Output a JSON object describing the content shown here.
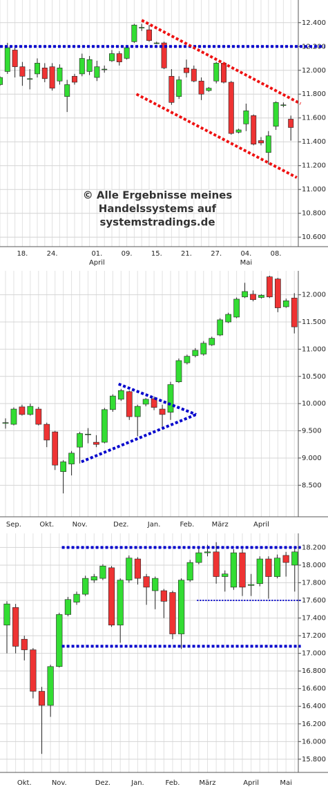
{
  "chart_data": [
    {
      "type": "candlestick",
      "categories": [
        null,
        null,
        null,
        "18.",
        null,
        null,
        null,
        "24.",
        null,
        null,
        null,
        null,
        null,
        "01.",
        null,
        null,
        null,
        "09.",
        null,
        null,
        null,
        "15.",
        null,
        null,
        null,
        "21.",
        null,
        null,
        null,
        "27.",
        null,
        null,
        null,
        "04.",
        null,
        null,
        null,
        "08.",
        null,
        null
      ],
      "months": [
        null,
        null,
        null,
        null,
        null,
        null,
        null,
        null,
        null,
        null,
        null,
        null,
        null,
        "April",
        null,
        null,
        null,
        null,
        null,
        null,
        null,
        null,
        null,
        null,
        null,
        null,
        null,
        null,
        null,
        null,
        null,
        null,
        null,
        "Mai",
        null,
        null,
        null,
        null,
        null,
        null
      ],
      "open": [
        11880,
        11990,
        12170,
        12030,
        11930,
        11970,
        12020,
        12030,
        11910,
        11780,
        11950,
        11970,
        11990,
        11940,
        12010,
        12080,
        12140,
        12100,
        12240,
        12360,
        12340,
        12230,
        12230,
        11950,
        11780,
        12020,
        12010,
        11910,
        11830,
        11910,
        12060,
        11900,
        11480,
        11550,
        11620,
        11410,
        11310,
        11530,
        11710,
        11590
      ],
      "high": [
        11950,
        12230,
        12200,
        12070,
        12010,
        12100,
        12060,
        12060,
        12050,
        11920,
        11970,
        12140,
        12120,
        12080,
        12040,
        12170,
        12160,
        12200,
        12390,
        12390,
        12380,
        12240,
        12240,
        12010,
        11950,
        12090,
        12040,
        11940,
        11860,
        12070,
        12070,
        11910,
        11510,
        11720,
        11630,
        11440,
        11490,
        11740,
        11730,
        11620
      ],
      "low": [
        11870,
        11970,
        11940,
        11870,
        11840,
        11940,
        11900,
        11830,
        11880,
        11650,
        11880,
        11950,
        11960,
        11910,
        11980,
        12070,
        12040,
        12090,
        12230,
        12330,
        12240,
        12220,
        12010,
        11710,
        11760,
        11940,
        11900,
        11750,
        11820,
        11890,
        11890,
        11460,
        11470,
        11490,
        11370,
        11370,
        11210,
        11500,
        11690,
        11410
      ],
      "close": [
        11940,
        12190,
        12030,
        11950,
        11930,
        12060,
        11930,
        11850,
        12020,
        11880,
        11900,
        12100,
        12090,
        12030,
        12010,
        12140,
        12070,
        12190,
        12380,
        12360,
        12250,
        12230,
        12020,
        11730,
        11920,
        11980,
        11910,
        11800,
        11850,
        12060,
        11900,
        11470,
        11500,
        11660,
        11380,
        11390,
        11450,
        11730,
        11710,
        11520
      ],
      "up_color": "#33dd33",
      "down_color": "#ee3333",
      "ylim": [
        10520,
        12590
      ],
      "yticks": [
        {
          "value": 10600,
          "label": "10.600"
        },
        {
          "value": 10800,
          "label": "10.800"
        },
        {
          "value": 11000,
          "label": "11.000"
        },
        {
          "value": 11200,
          "label": "11.200"
        },
        {
          "value": 11400,
          "label": "11.400"
        },
        {
          "value": 11600,
          "label": "11.600"
        },
        {
          "value": 11800,
          "label": "11.800"
        },
        {
          "value": 12000,
          "label": "12.000"
        },
        {
          "value": 12200,
          "label": "12.200"
        },
        {
          "value": 12400,
          "label": "12.400"
        }
      ],
      "grid": true,
      "lines": [
        {
          "color": "#0000cc",
          "x": [
            0,
            43.5
          ],
          "y": [
            12200,
            12200
          ]
        },
        {
          "color": "#ee1111",
          "x": [
            19,
            40.3
          ],
          "y": [
            12420,
            11720
          ]
        },
        {
          "color": "#ee1111",
          "x": [
            18.3,
            39.8
          ],
          "y": [
            11800,
            11100
          ]
        }
      ],
      "annotations": [
        "© Alle Ergebnisse meines",
        "Handelssystems auf",
        "systemstradings.de"
      ]
    },
    {
      "type": "candlestick",
      "categories": [
        null,
        "Sep.",
        null,
        null,
        null,
        "Okt.",
        null,
        null,
        null,
        "Nov.",
        null,
        null,
        null,
        null,
        "Dez.",
        null,
        null,
        null,
        "Jan.",
        null,
        null,
        null,
        "Feb.",
        null,
        null,
        null,
        "März",
        null,
        null,
        null,
        null,
        "April",
        null,
        null,
        null,
        null
      ],
      "open": [
        9650,
        9620,
        9940,
        9800,
        9900,
        9620,
        9480,
        8750,
        8890,
        9200,
        9440,
        9290,
        9290,
        9890,
        10080,
        10220,
        9760,
        9990,
        10090,
        9900,
        9840,
        10400,
        10750,
        10880,
        10910,
        11080,
        11260,
        11500,
        11590,
        11960,
        12010,
        11950,
        12330,
        12290,
        11780,
        11940
      ],
      "high": [
        9730,
        9930,
        9980,
        10000,
        9940,
        9650,
        9500,
        8960,
        9130,
        9480,
        9550,
        9420,
        9920,
        10170,
        10270,
        10240,
        9980,
        10100,
        10130,
        9980,
        10400,
        10830,
        10900,
        11020,
        11150,
        11230,
        11570,
        11670,
        11950,
        12220,
        12080,
        12010,
        12350,
        12310,
        11930,
        12030
      ],
      "low": [
        9540,
        9600,
        9780,
        9780,
        9600,
        9200,
        8780,
        8350,
        8680,
        8900,
        9270,
        9200,
        9270,
        9850,
        10050,
        9700,
        9400,
        9950,
        9880,
        9550,
        9700,
        10380,
        10720,
        10850,
        10880,
        11060,
        11240,
        11480,
        11570,
        11940,
        11880,
        11930,
        11940,
        11680,
        11760,
        11290
      ],
      "close": [
        9650,
        9900,
        9800,
        9950,
        9620,
        9330,
        8870,
        8930,
        9090,
        9450,
        9440,
        9250,
        9890,
        10140,
        10240,
        9760,
        9950,
        10080,
        9930,
        9800,
        10350,
        10790,
        10870,
        10980,
        11110,
        11200,
        11540,
        11640,
        11920,
        12060,
        11910,
        11990,
        11960,
        11760,
        11890,
        11410
      ],
      "up_color": "#33dd33",
      "down_color": "#ee3333",
      "ylim": [
        7920,
        12440
      ],
      "yticks": [
        {
          "value": 8500,
          "label": "8.500"
        },
        {
          "value": 9000,
          "label": "9.000"
        },
        {
          "value": 9500,
          "label": "9.500"
        },
        {
          "value": 10000,
          "label": "10.000"
        },
        {
          "value": 10500,
          "label": "10.500"
        },
        {
          "value": 11000,
          "label": "11.000"
        },
        {
          "value": 11500,
          "label": "11.500"
        },
        {
          "value": 12000,
          "label": "12.000"
        }
      ],
      "grid": true,
      "lines": [
        {
          "color": "#0000cc",
          "x": [
            13.7,
            23.1
          ],
          "y": [
            10360,
            9800
          ]
        },
        {
          "color": "#0000cc",
          "x": [
            9.2,
            23.1
          ],
          "y": [
            8930,
            9800
          ]
        }
      ]
    },
    {
      "type": "candlestick",
      "categories": [
        null,
        null,
        "Okt.",
        null,
        null,
        null,
        "Nov.",
        null,
        null,
        null,
        null,
        "Dez.",
        null,
        null,
        null,
        "Jan.",
        null,
        null,
        null,
        "Feb.",
        null,
        null,
        null,
        "März",
        null,
        null,
        null,
        null,
        "April",
        null,
        null,
        null,
        "Mai",
        null
      ],
      "open": [
        17320,
        17520,
        17160,
        17040,
        16570,
        16410,
        16850,
        17440,
        17580,
        17670,
        17830,
        17850,
        17970,
        17320,
        17830,
        18070,
        17870,
        17710,
        17710,
        17690,
        17220,
        17830,
        18030,
        18140,
        18150,
        17870,
        17750,
        18140,
        17770,
        17790,
        18070,
        17870,
        18110,
        18000
      ],
      "high": [
        17590,
        17560,
        17200,
        17060,
        16620,
        16870,
        17460,
        17640,
        17700,
        17880,
        17900,
        18010,
        17990,
        17850,
        18110,
        18090,
        17900,
        17870,
        17730,
        17710,
        17850,
        18060,
        18200,
        18230,
        18260,
        17940,
        18180,
        18180,
        17900,
        18100,
        18100,
        18120,
        18150,
        18200
      ],
      "low": [
        17000,
        17000,
        16920,
        16490,
        15860,
        16280,
        16840,
        17420,
        17550,
        17650,
        17800,
        17830,
        17300,
        17120,
        17800,
        17780,
        17550,
        17500,
        17400,
        17160,
        17050,
        17810,
        18010,
        18100,
        17790,
        17700,
        17720,
        17650,
        17650,
        17760,
        17620,
        17850,
        17870,
        17700
      ],
      "close": [
        17560,
        17080,
        17040,
        16570,
        16410,
        16850,
        17440,
        17610,
        17670,
        17850,
        17870,
        17990,
        17320,
        17830,
        18080,
        17850,
        17750,
        17850,
        17590,
        17220,
        17830,
        18030,
        18140,
        18150,
        17870,
        17900,
        18140,
        17750,
        17780,
        18070,
        17870,
        18080,
        18030,
        18150
      ],
      "up_color": "#33dd33",
      "down_color": "#ee3333",
      "ylim": [
        15650,
        18360
      ],
      "yticks": [
        {
          "value": 15800,
          "label": "15.800"
        },
        {
          "value": 16000,
          "label": "16.000"
        },
        {
          "value": 16200,
          "label": "16.200"
        },
        {
          "value": 16400,
          "label": "16.400"
        },
        {
          "value": 16600,
          "label": "16.600"
        },
        {
          "value": 16800,
          "label": "16.800"
        },
        {
          "value": 17000,
          "label": "17.000"
        },
        {
          "value": 17200,
          "label": "17.200"
        },
        {
          "value": 17400,
          "label": "17.400"
        },
        {
          "value": 17600,
          "label": "17.600"
        },
        {
          "value": 17800,
          "label": "17.800"
        },
        {
          "value": 18000,
          "label": "18.000"
        },
        {
          "value": 18200,
          "label": "18.200"
        }
      ],
      "grid": true,
      "lines": [
        {
          "color": "#0000cc",
          "x": [
            6.3,
            33.7
          ],
          "y": [
            18200,
            18200
          ]
        },
        {
          "color": "#0000cc",
          "x": [
            6.3,
            33.7
          ],
          "y": [
            17080,
            17080
          ]
        },
        {
          "color": "#0000cc",
          "x": [
            21.8,
            33.7
          ],
          "y": [
            17600,
            17600
          ],
          "style": "thin"
        }
      ]
    }
  ]
}
